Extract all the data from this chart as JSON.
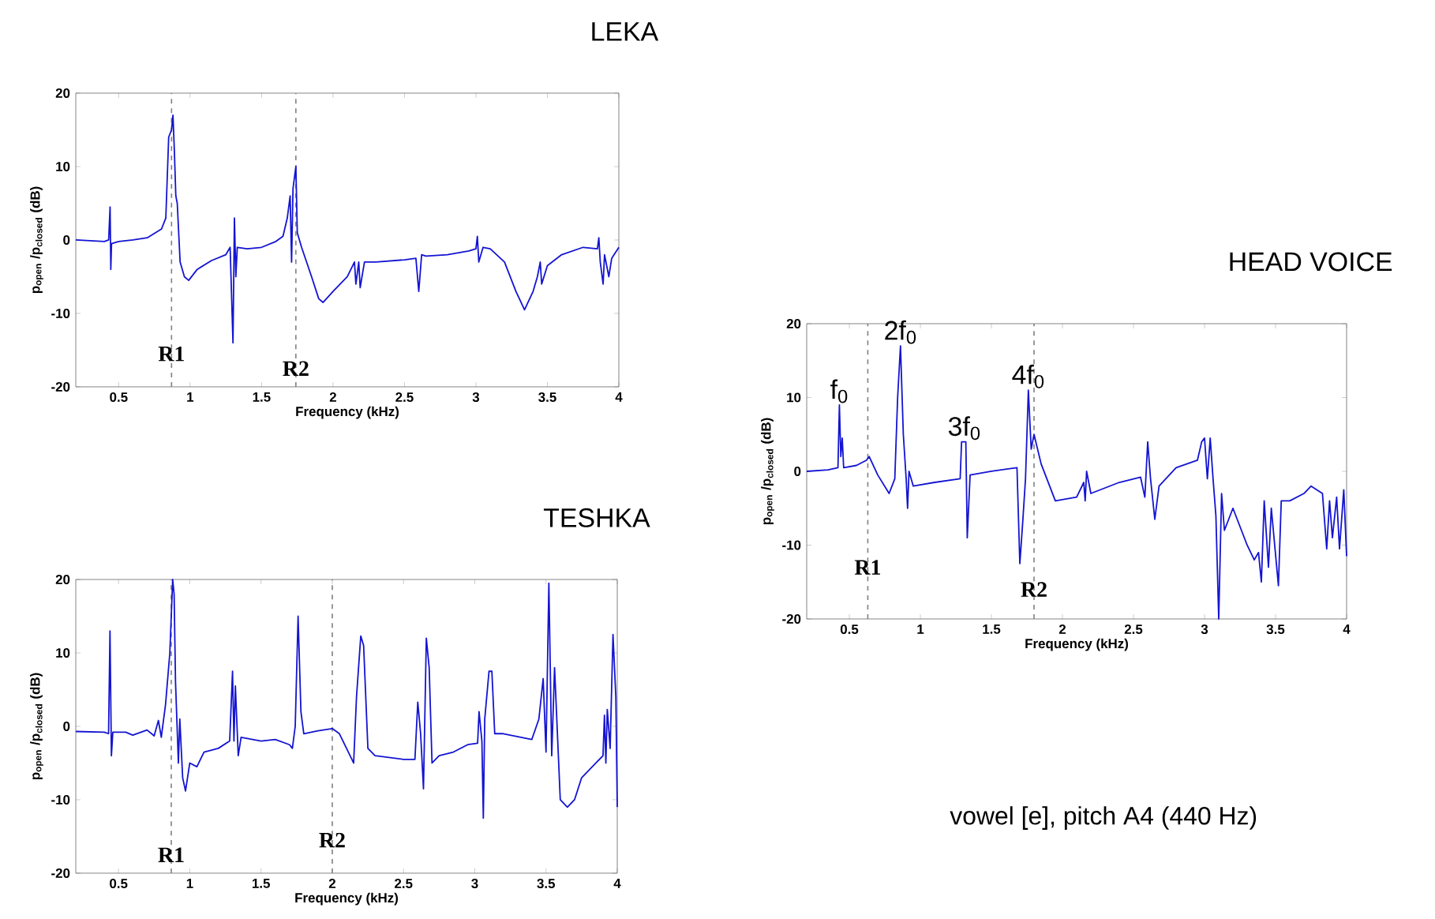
{
  "chart_data": [
    {
      "type": "line",
      "title": "LEKA",
      "xlabel": "Frequency  (kHz)",
      "ylabel": "p$_{open}$ /p$_{closed}$  (dB)",
      "xlim": [
        0.2,
        4
      ],
      "ylim": [
        -20,
        20
      ],
      "xticks": [
        0.5,
        1,
        1.5,
        2,
        2.5,
        3,
        3.5,
        4
      ],
      "yticks": [
        -20,
        -10,
        0,
        10,
        20
      ],
      "line_style": "solid",
      "ref_lines": [
        {
          "axis": "x",
          "value": 0.87,
          "label": "R1",
          "color": "#808080",
          "line_style": "dashed"
        },
        {
          "axis": "x",
          "value": 1.74,
          "label": "R2",
          "color": "#808080",
          "line_style": "dashed"
        }
      ],
      "series": [
        {
          "color": "#1414d2",
          "x": [
            0.2,
            0.4,
            0.43,
            0.44,
            0.445,
            0.45,
            0.5,
            0.6,
            0.7,
            0.8,
            0.83,
            0.85,
            0.87,
            0.88,
            0.89,
            0.9,
            0.91,
            0.93,
            0.96,
            0.99,
            1.05,
            1.15,
            1.25,
            1.28,
            1.3,
            1.31,
            1.32,
            1.33,
            1.4,
            1.5,
            1.6,
            1.65,
            1.68,
            1.7,
            1.71,
            1.72,
            1.74,
            1.75,
            1.78,
            1.85,
            1.9,
            1.93,
            2.0,
            2.1,
            2.15,
            2.16,
            2.18,
            2.19,
            2.22,
            2.3,
            2.5,
            2.58,
            2.6,
            2.62,
            2.65,
            2.8,
            2.95,
            3.0,
            3.01,
            3.02,
            3.05,
            3.1,
            3.2,
            3.28,
            3.34,
            3.4,
            3.43,
            3.45,
            3.46,
            3.5,
            3.6,
            3.75,
            3.85,
            3.86,
            3.87,
            3.89,
            3.9,
            3.93,
            3.95,
            4.0
          ],
          "values": [
            0,
            -0.2,
            0,
            4.5,
            -4,
            -0.5,
            -0.2,
            0,
            0.3,
            1.5,
            3,
            14,
            15,
            17,
            12,
            6,
            5,
            -3,
            -5,
            -5.5,
            -4,
            -2.8,
            -2,
            -1,
            -14,
            3,
            -5,
            -1,
            -1.2,
            -1,
            -0.2,
            0.5,
            3,
            6,
            -3,
            7,
            10,
            1,
            -1,
            -5,
            -8,
            -8.5,
            -7,
            -5,
            -3,
            -6,
            -3,
            -6.5,
            -3,
            -3,
            -2.7,
            -2.5,
            -7,
            -2,
            -2.2,
            -2,
            -1.5,
            -1.2,
            0.5,
            -3,
            -1,
            -1.2,
            -3,
            -7,
            -9.5,
            -7,
            -5,
            -3,
            -6,
            -3.5,
            -2,
            -1,
            -1.2,
            0.3,
            -3,
            -6,
            -2,
            -5,
            -2.5,
            -1
          ]
        }
      ]
    },
    {
      "type": "line",
      "title": "TESHKA",
      "xlabel": "Frequency  (kHz)",
      "ylabel": "p$_{open}$ /p$_{closed}$  (dB)",
      "xlim": [
        0.2,
        4
      ],
      "ylim": [
        -20,
        20
      ],
      "xticks": [
        0.5,
        1,
        1.5,
        2,
        2.5,
        3,
        3.5,
        4
      ],
      "yticks": [
        -20,
        -10,
        0,
        10,
        20
      ],
      "line_style": "solid",
      "ref_lines": [
        {
          "axis": "x",
          "value": 0.87,
          "label": "R1",
          "color": "#808080",
          "line_style": "dashed"
        },
        {
          "axis": "x",
          "value": 2.0,
          "label": "R2",
          "color": "#808080",
          "line_style": "dashed"
        }
      ],
      "series": [
        {
          "color": "#1414d2",
          "x": [
            0.2,
            0.4,
            0.43,
            0.44,
            0.45,
            0.46,
            0.55,
            0.6,
            0.7,
            0.75,
            0.78,
            0.8,
            0.83,
            0.86,
            0.88,
            0.89,
            0.9,
            0.92,
            0.93,
            0.95,
            0.97,
            1.0,
            1.05,
            1.1,
            1.2,
            1.28,
            1.3,
            1.31,
            1.32,
            1.34,
            1.36,
            1.5,
            1.6,
            1.7,
            1.72,
            1.74,
            1.76,
            1.78,
            1.8,
            1.9,
            2.0,
            2.05,
            2.1,
            2.15,
            2.17,
            2.2,
            2.22,
            2.25,
            2.3,
            2.5,
            2.58,
            2.6,
            2.62,
            2.64,
            2.66,
            2.68,
            2.7,
            2.75,
            2.85,
            2.95,
            3.02,
            3.03,
            3.05,
            3.06,
            3.07,
            3.1,
            3.12,
            3.14,
            3.2,
            3.4,
            3.45,
            3.48,
            3.5,
            3.52,
            3.54,
            3.56,
            3.6,
            3.65,
            3.7,
            3.75,
            3.85,
            3.9,
            3.91,
            3.92,
            3.93,
            3.95,
            3.97,
            3.99,
            4.0
          ],
          "values": [
            -0.7,
            -0.8,
            -1,
            13,
            -4,
            -0.8,
            -0.8,
            -1.2,
            -0.5,
            -1.3,
            0.8,
            -1.5,
            3,
            10,
            20,
            18,
            6,
            -5,
            1,
            -7,
            -8.8,
            -5,
            -5.5,
            -3.5,
            -3,
            -2,
            7.5,
            -2,
            5.5,
            -4,
            -1.5,
            -2,
            -1.8,
            -2.5,
            -3,
            0,
            15,
            2,
            -1,
            -0.6,
            -0.3,
            -1,
            -3,
            -5,
            4,
            12.3,
            11,
            -3,
            -4,
            -4.5,
            -4.5,
            3.3,
            -1,
            -8.5,
            12,
            8,
            -5,
            -4,
            -3.5,
            -2.5,
            -2.3,
            2,
            -2,
            -12.5,
            1,
            7.5,
            7.5,
            -1,
            -1,
            -1.8,
            1,
            6.5,
            -3.5,
            19.5,
            -4,
            8,
            -10,
            -11,
            -10,
            -7,
            -5,
            -4,
            1.5,
            -5,
            2.3,
            -3,
            12.5,
            4,
            -11
          ]
        }
      ]
    },
    {
      "type": "line",
      "title": "HEAD VOICE",
      "xlabel": "Frequency  (kHz)",
      "ylabel": "p$_{open}$ /p$_{closed}$  (dB)",
      "xlim": [
        0.2,
        4
      ],
      "ylim": [
        -20,
        20
      ],
      "xticks": [
        0.5,
        1,
        1.5,
        2,
        2.5,
        3,
        3.5,
        4
      ],
      "yticks": [
        -20,
        -10,
        0,
        10,
        20
      ],
      "line_style": "solid",
      "ref_lines": [
        {
          "axis": "x",
          "value": 0.63,
          "label": "R1",
          "color": "#808080",
          "line_style": "dashed"
        },
        {
          "axis": "x",
          "value": 1.8,
          "label": "R2",
          "color": "#808080",
          "line_style": "dashed"
        }
      ],
      "annotations": [
        {
          "text": "f$_{0}$",
          "x": 0.43,
          "y": 9
        },
        {
          "text": "2f$_{0}$",
          "x": 0.86,
          "y": 17
        },
        {
          "text": "3f$_{0}$",
          "x": 1.31,
          "y": 4
        },
        {
          "text": "4f$_{0}$",
          "x": 1.76,
          "y": 11
        },
        "vowel [e], pitch A4 (440 Hz)"
      ],
      "series": [
        {
          "color": "#1414d2",
          "x": [
            0.2,
            0.35,
            0.42,
            0.43,
            0.44,
            0.45,
            0.46,
            0.55,
            0.62,
            0.64,
            0.7,
            0.78,
            0.82,
            0.84,
            0.86,
            0.88,
            0.9,
            0.91,
            0.92,
            0.95,
            1.1,
            1.28,
            1.29,
            1.32,
            1.33,
            1.35,
            1.5,
            1.68,
            1.7,
            1.72,
            1.74,
            1.76,
            1.78,
            1.8,
            1.85,
            1.95,
            2.1,
            2.15,
            2.16,
            2.17,
            2.2,
            2.4,
            2.55,
            2.58,
            2.6,
            2.62,
            2.65,
            2.68,
            2.8,
            2.95,
            2.98,
            3.0,
            3.02,
            3.04,
            3.06,
            3.08,
            3.1,
            3.12,
            3.14,
            3.2,
            3.3,
            3.35,
            3.38,
            3.4,
            3.42,
            3.45,
            3.47,
            3.52,
            3.54,
            3.6,
            3.7,
            3.75,
            3.83,
            3.86,
            3.88,
            3.9,
            3.93,
            3.95,
            3.98,
            4.0
          ],
          "values": [
            0,
            0.2,
            0.5,
            9,
            2,
            4.5,
            0.5,
            0.8,
            1.5,
            2,
            -0.5,
            -3,
            -1,
            10,
            17,
            5,
            -1,
            -5,
            0,
            -2,
            -1.5,
            -1,
            4,
            4,
            -9,
            -0.5,
            0,
            0.5,
            -12.5,
            -7,
            -1,
            11,
            3,
            5,
            1,
            -4,
            -3.5,
            -1.5,
            -4,
            0,
            -3,
            -1.5,
            -0.8,
            -3.5,
            4,
            -1,
            -6.5,
            -2,
            0.5,
            1.5,
            4,
            4.5,
            -1,
            4.5,
            -1,
            -6,
            -20,
            -3,
            -8,
            -5,
            -10,
            -12,
            -11,
            -15,
            -4,
            -13,
            -5,
            -15.5,
            -4,
            -4,
            -3,
            -2,
            -3,
            -10.5,
            -4,
            -9,
            -3.5,
            -10.5,
            -2.5,
            -11.5
          ]
        }
      ]
    }
  ]
}
